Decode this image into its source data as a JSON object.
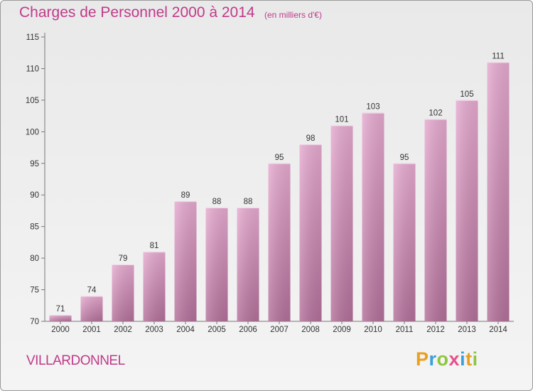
{
  "header": {
    "title": "Charges de Personnel 2000 à 2014",
    "subtitle": "(en milliers d'€)"
  },
  "footer": {
    "commune": "VILLARDONNEL",
    "logo_text": "Proxiti"
  },
  "colors": {
    "accent": "#c03a8a",
    "bar_top": "#e3a6cc",
    "bar_bottom": "#b06a95"
  },
  "chart_data": {
    "type": "bar",
    "title": "Charges de Personnel 2000 à 2014",
    "subtitle": "(en milliers d'€)",
    "xlabel": "",
    "ylabel": "",
    "categories": [
      "2000",
      "2001",
      "2002",
      "2003",
      "2004",
      "2005",
      "2006",
      "2007",
      "2008",
      "2009",
      "2010",
      "2011",
      "2012",
      "2013",
      "2014"
    ],
    "values": [
      71,
      74,
      79,
      81,
      89,
      88,
      88,
      95,
      98,
      101,
      103,
      95,
      102,
      105,
      111
    ],
    "ylim": [
      70,
      115
    ],
    "yticks": [
      70,
      75,
      80,
      85,
      90,
      95,
      100,
      105,
      110,
      115
    ],
    "grid": false,
    "legend": "none"
  }
}
